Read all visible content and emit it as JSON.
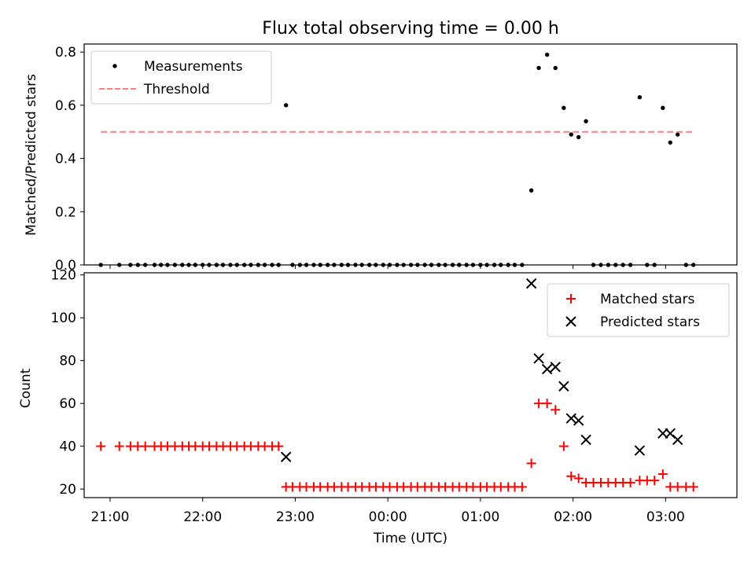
{
  "chart_data": [
    {
      "type": "scatter",
      "title": "Flux total observing time = 0.00 h",
      "xlabel": "",
      "ylabel": "Matched/Predicted stars",
      "ylim": [
        0,
        0.83
      ],
      "yticks": [
        0,
        0.2,
        0.4,
        0.6,
        0.8
      ],
      "ytick_labels": [
        "0.0",
        "0.2",
        "0.4",
        "0.6",
        "0.8"
      ],
      "xlim": [
        -3.28,
        3.77
      ],
      "x_units": "hours relative to 00:00 UTC",
      "legend": {
        "placement": "top-left",
        "entries": [
          "Measurements",
          "Threshold"
        ]
      },
      "series": [
        {
          "name": "Measurements",
          "color": "#000000",
          "marker": "dot",
          "x": [
            -3.1,
            -2.9,
            -2.78,
            -2.7,
            -2.62,
            -2.52,
            -2.45,
            -2.38,
            -2.3,
            -2.22,
            -2.15,
            -2.08,
            -2.0,
            -1.93,
            -1.85,
            -1.78,
            -1.7,
            -1.63,
            -1.55,
            -1.48,
            -1.4,
            -1.33,
            -1.25,
            -1.18,
            -1.1,
            -1.03,
            -0.95,
            -0.88,
            -0.8,
            -0.73,
            -0.65,
            -0.58,
            -0.5,
            -0.43,
            -0.35,
            -0.28,
            -0.2,
            -0.13,
            -0.05,
            0.02,
            0.1,
            0.17,
            0.25,
            0.32,
            0.4,
            0.47,
            0.55,
            0.62,
            0.7,
            0.77,
            0.85,
            0.92,
            1.0,
            1.07,
            1.15,
            1.22,
            1.3,
            1.37,
            1.45,
            1.55,
            1.63,
            1.72,
            1.81,
            1.9,
            1.98,
            2.06,
            2.14,
            2.22,
            2.3,
            2.38,
            2.46,
            2.54,
            2.62,
            2.72,
            2.8,
            2.88,
            2.97,
            3.05,
            3.13,
            3.22,
            3.3
          ],
          "y": [
            0,
            0,
            0,
            0,
            0,
            0,
            0,
            0,
            0,
            0,
            0,
            0,
            0,
            0,
            0,
            0,
            0,
            0,
            0,
            0,
            0,
            0,
            0,
            0,
            0.6,
            0,
            0,
            0,
            0,
            0,
            0,
            0,
            0,
            0,
            0,
            0,
            0,
            0,
            0,
            0,
            0,
            0,
            0,
            0,
            0,
            0,
            0,
            0,
            0,
            0,
            0,
            0,
            0,
            0,
            0,
            0,
            0,
            0,
            0,
            0.28,
            0.74,
            0.79,
            0.74,
            0.59,
            0.49,
            0.48,
            0.54,
            0,
            0,
            0,
            0,
            0,
            0,
            0.63,
            0,
            0,
            0.59,
            0.46,
            0.49,
            0,
            0
          ]
        },
        {
          "name": "Threshold",
          "color": "#ff7f7f",
          "style": "dashed",
          "x": [
            -3.1,
            3.3
          ],
          "y": [
            0.5,
            0.5
          ]
        }
      ]
    },
    {
      "type": "scatter",
      "title": "",
      "xlabel": "Time (UTC)",
      "ylabel": "Count",
      "ylim": [
        16,
        121
      ],
      "yticks": [
        20,
        40,
        60,
        80,
        100,
        120
      ],
      "ytick_labels": [
        "20",
        "40",
        "60",
        "80",
        "100",
        "120"
      ],
      "xlim": [
        -3.28,
        3.77
      ],
      "xticks": [
        -3,
        -2,
        -1,
        0,
        1,
        2,
        3
      ],
      "xtick_labels": [
        "21:00",
        "22:00",
        "23:00",
        "00:00",
        "01:00",
        "02:00",
        "03:00"
      ],
      "legend": {
        "placement": "top-right",
        "entries": [
          "Matched stars",
          "Predicted stars"
        ]
      },
      "series": [
        {
          "name": "Matched stars",
          "color": "#ff0000",
          "marker": "plus",
          "x": [
            -3.1,
            -2.9,
            -2.78,
            -2.7,
            -2.62,
            -2.52,
            -2.45,
            -2.38,
            -2.3,
            -2.22,
            -2.15,
            -2.08,
            -2.0,
            -1.93,
            -1.85,
            -1.78,
            -1.7,
            -1.63,
            -1.55,
            -1.48,
            -1.4,
            -1.33,
            -1.25,
            -1.18,
            -1.1,
            -1.03,
            -0.95,
            -0.88,
            -0.8,
            -0.73,
            -0.65,
            -0.58,
            -0.5,
            -0.43,
            -0.35,
            -0.28,
            -0.2,
            -0.13,
            -0.05,
            0.02,
            0.1,
            0.17,
            0.25,
            0.32,
            0.4,
            0.47,
            0.55,
            0.62,
            0.7,
            0.77,
            0.85,
            0.92,
            1.0,
            1.07,
            1.15,
            1.22,
            1.3,
            1.37,
            1.45,
            1.55,
            1.63,
            1.72,
            1.81,
            1.9,
            1.98,
            2.06,
            2.14,
            2.22,
            2.3,
            2.38,
            2.46,
            2.54,
            2.62,
            2.72,
            2.8,
            2.88,
            2.97,
            3.05,
            3.13,
            3.22,
            3.3
          ],
          "y": [
            40,
            40,
            40,
            40,
            40,
            40,
            40,
            40,
            40,
            40,
            40,
            40,
            40,
            40,
            40,
            40,
            40,
            40,
            40,
            40,
            40,
            40,
            40,
            40,
            21,
            21,
            21,
            21,
            21,
            21,
            21,
            21,
            21,
            21,
            21,
            21,
            21,
            21,
            21,
            21,
            21,
            21,
            21,
            21,
            21,
            21,
            21,
            21,
            21,
            21,
            21,
            21,
            21,
            21,
            21,
            21,
            21,
            21,
            21,
            32,
            60,
            60,
            57,
            40,
            26,
            25,
            23,
            23,
            23,
            23,
            23,
            23,
            23,
            24,
            24,
            24,
            27,
            21,
            21,
            21,
            21
          ]
        },
        {
          "name": "Predicted stars",
          "color": "#000000",
          "marker": "x",
          "x": [
            -1.1,
            1.55,
            1.63,
            1.72,
            1.81,
            1.9,
            1.98,
            2.06,
            2.14,
            2.72,
            2.97,
            3.05,
            3.13
          ],
          "y": [
            35,
            116,
            81,
            76,
            77,
            68,
            53,
            52,
            43,
            38,
            46,
            46,
            43
          ]
        }
      ]
    }
  ]
}
